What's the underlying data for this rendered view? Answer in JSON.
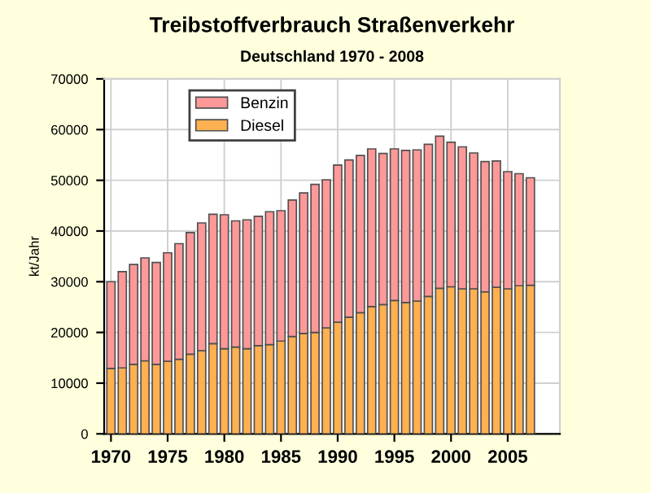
{
  "chart_data": {
    "type": "bar",
    "stacked": true,
    "title": "Treibstoffverbrauch Straßenverkehr",
    "subtitle": "Deutschland 1970 - 2008",
    "ylabel": "kt/Jahr",
    "x": [
      1970,
      1971,
      1972,
      1973,
      1974,
      1975,
      1976,
      1977,
      1978,
      1979,
      1980,
      1981,
      1982,
      1983,
      1984,
      1985,
      1986,
      1987,
      1988,
      1989,
      1990,
      1991,
      1992,
      1993,
      1994,
      1995,
      1996,
      1997,
      1998,
      1999,
      2000,
      2001,
      2002,
      2003,
      2004,
      2005,
      2006,
      2007
    ],
    "series": [
      {
        "name": "Diesel",
        "color": "#ffb050",
        "values": [
          12900,
          13000,
          13700,
          14400,
          13700,
          14300,
          14700,
          15700,
          16400,
          17800,
          16800,
          17100,
          16800,
          17400,
          17600,
          18300,
          19200,
          19800,
          20000,
          20900,
          22000,
          23000,
          23900,
          25100,
          25500,
          26300,
          25900,
          26200,
          27100,
          28700,
          29000,
          28600,
          28600,
          28000,
          28900,
          28600,
          29200,
          29300
        ]
      },
      {
        "name": "Benzin",
        "color": "#ff9999",
        "values": [
          17100,
          19000,
          19700,
          20300,
          20100,
          21400,
          22800,
          24000,
          25200,
          25500,
          26400,
          24900,
          25400,
          25500,
          26200,
          25700,
          26900,
          27700,
          29200,
          29200,
          31000,
          31000,
          31000,
          31100,
          29800,
          29900,
          30000,
          29800,
          30000,
          30000,
          28500,
          28000,
          26800,
          25700,
          24900,
          23100,
          22100,
          21200
        ]
      }
    ],
    "xlim": [
      1969.4,
      2009.6
    ],
    "xticks": [
      1970,
      1975,
      1980,
      1985,
      1990,
      1995,
      2000,
      2005
    ],
    "ylim": [
      0,
      70000
    ],
    "yticks": [
      0,
      10000,
      20000,
      30000,
      40000,
      50000,
      60000,
      70000
    ],
    "grid": true,
    "legend": "top left"
  }
}
